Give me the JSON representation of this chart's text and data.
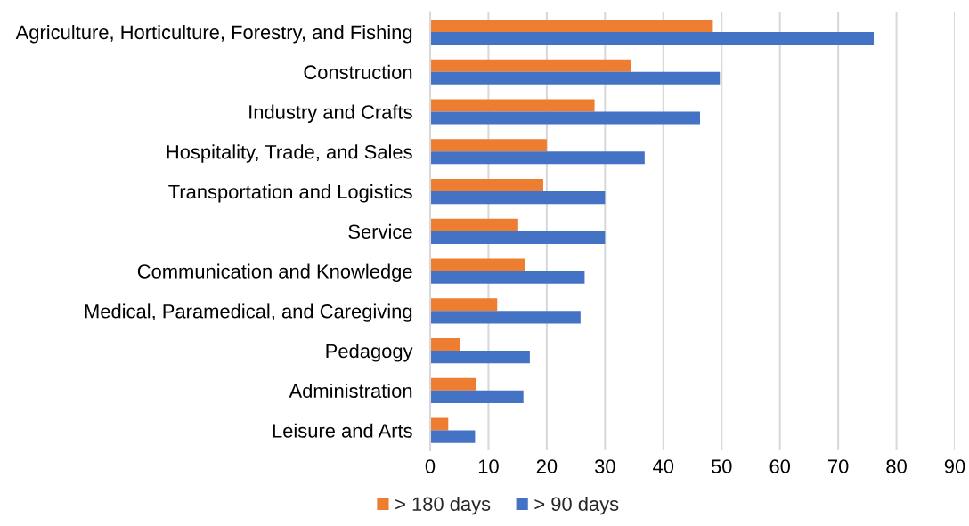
{
  "chart_data": {
    "type": "bar",
    "orientation": "horizontal",
    "categories": [
      "Agriculture, Horticulture, Forestry, and Fishing",
      "Construction",
      "Industry and Crafts",
      "Hospitality, Trade, and Sales",
      "Transportation and Logistics",
      "Service",
      "Communication and Knowledge",
      "Medical, Paramedical, and Caregiving",
      "Pedagogy",
      "Administration",
      "Leisure and Arts"
    ],
    "series": [
      {
        "name": "> 180 days",
        "color": "#ed7d31",
        "values": [
          48.5,
          34.5,
          28.2,
          20.0,
          19.4,
          15.1,
          16.3,
          11.5,
          5.2,
          7.8,
          3.1
        ]
      },
      {
        "name": "> 90 days",
        "color": "#4472c4",
        "values": [
          76.1,
          49.7,
          46.3,
          36.8,
          30.0,
          30.0,
          26.5,
          25.8,
          17.1,
          16.0,
          7.7
        ]
      }
    ],
    "xlim": [
      0,
      90
    ],
    "xticks": [
      0,
      10,
      20,
      30,
      40,
      50,
      60,
      70,
      80,
      90
    ],
    "grid": "x",
    "legend": "bottom"
  }
}
